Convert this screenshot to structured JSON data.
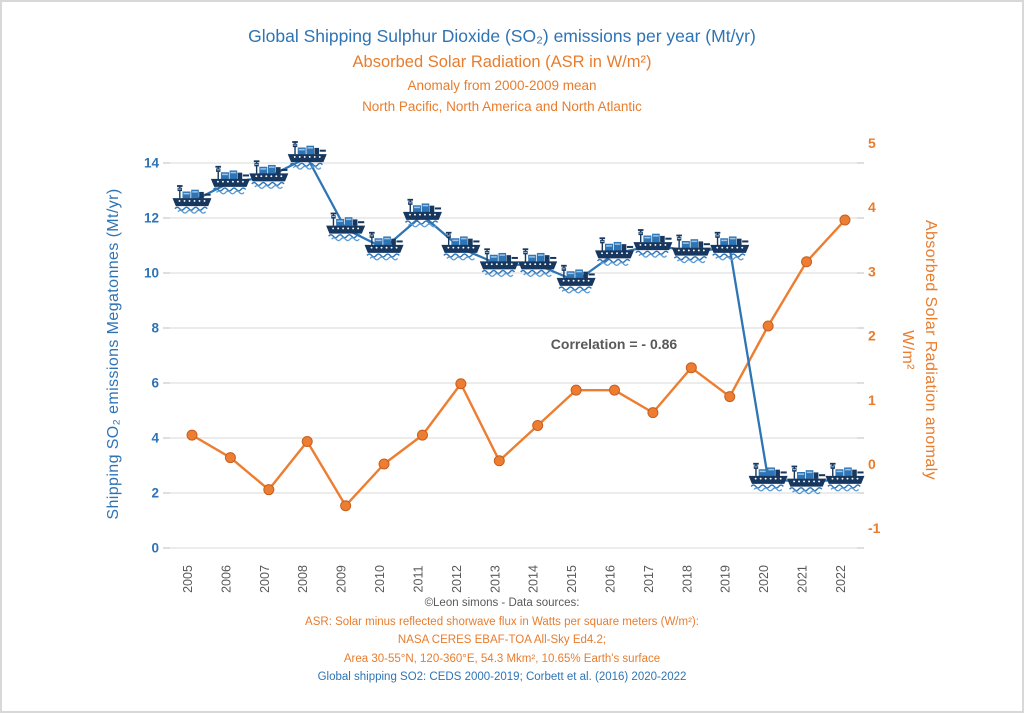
{
  "title": {
    "line1": "Global Shipping Sulphur Dioxide (SO₂) emissions per year (Mt/yr)",
    "line2": "Absorbed Solar Radiation (ASR in W/m²)",
    "line3": "Anomaly from 2000-2009 mean",
    "line4": "North Pacific, North America and North Atlantic"
  },
  "annotation": {
    "text": "Correlation = - 0.86"
  },
  "footer": {
    "lines": [
      {
        "text": "©Leon simons - Data sources:",
        "color": "gray"
      },
      {
        "text": "ASR: Solar minus reflected shorwave flux in Watts per square meters (W/m²):",
        "color": "orange"
      },
      {
        "text": "NASA CERES EBAF-TOA All-Sky Ed4.2;",
        "color": "orange"
      },
      {
        "text": "Area 30-55°N, 120-360°E, 54.3 Mkm², 10.65% Earth's surface",
        "color": "orange"
      },
      {
        "text": "Global shipping SO2: CEDS 2000-2019; Corbett et al. (2016) 2020-2022",
        "color": "blue"
      }
    ]
  },
  "colors": {
    "blue_text": "#2E74B5",
    "blue_line": "#2E75B6",
    "dark_navy": "#17375E",
    "orange": "#ED7D31",
    "orange_dark": "#C55F21",
    "gray_text": "#595959",
    "gridline": "#D9D9D9",
    "tick_mark": "#BFBFBF"
  },
  "chart_data": {
    "type": "line",
    "x": [
      2005,
      2006,
      2007,
      2008,
      2009,
      2010,
      2011,
      2012,
      2013,
      2014,
      2015,
      2016,
      2017,
      2018,
      2019,
      2020,
      2021,
      2022
    ],
    "series": [
      {
        "name": "Shipping SO₂ emissions Megatonnes (Mt/yr)",
        "axis": "left",
        "color": "#2E75B6",
        "marker": "ship-icon",
        "values": [
          12.6,
          13.3,
          13.5,
          14.2,
          11.6,
          10.9,
          12.1,
          10.9,
          10.3,
          10.3,
          9.7,
          10.7,
          11.0,
          10.8,
          10.9,
          2.5,
          2.4,
          2.5
        ]
      },
      {
        "name": "Absorbed Solar Radiation anomaly (W/m²)",
        "axis": "right",
        "color": "#ED7D31",
        "marker": "circle",
        "values": [
          0.45,
          0.1,
          -0.4,
          0.35,
          -0.65,
          0.0,
          0.45,
          1.25,
          0.05,
          0.6,
          1.15,
          1.15,
          0.8,
          1.5,
          1.05,
          2.15,
          3.15,
          3.8
        ]
      }
    ],
    "left_axis": {
      "title": "Shipping SO₂ emissions Megatonnes (Mt/yr)",
      "ticks": [
        14,
        12,
        10,
        8,
        6,
        4,
        2,
        0
      ],
      "range": [
        0,
        14
      ],
      "color": "#2E74B5"
    },
    "right_axis": {
      "title": "Absorbed Solar Radiation anomaly",
      "subtitle": "W/m²",
      "ticks": [
        5,
        4,
        3,
        2,
        1,
        0,
        -1
      ],
      "range": [
        -1,
        5
      ],
      "color": "#E87D2E"
    },
    "x_axis": {
      "labels": [
        "2005",
        "2006",
        "2007",
        "2008",
        "2009",
        "2010",
        "2011",
        "2012",
        "2013",
        "2014",
        "2015",
        "2016",
        "2017",
        "2018",
        "2019",
        "2020",
        "2021",
        "2022"
      ],
      "color": "#595959"
    },
    "grid": true,
    "legend": false
  }
}
